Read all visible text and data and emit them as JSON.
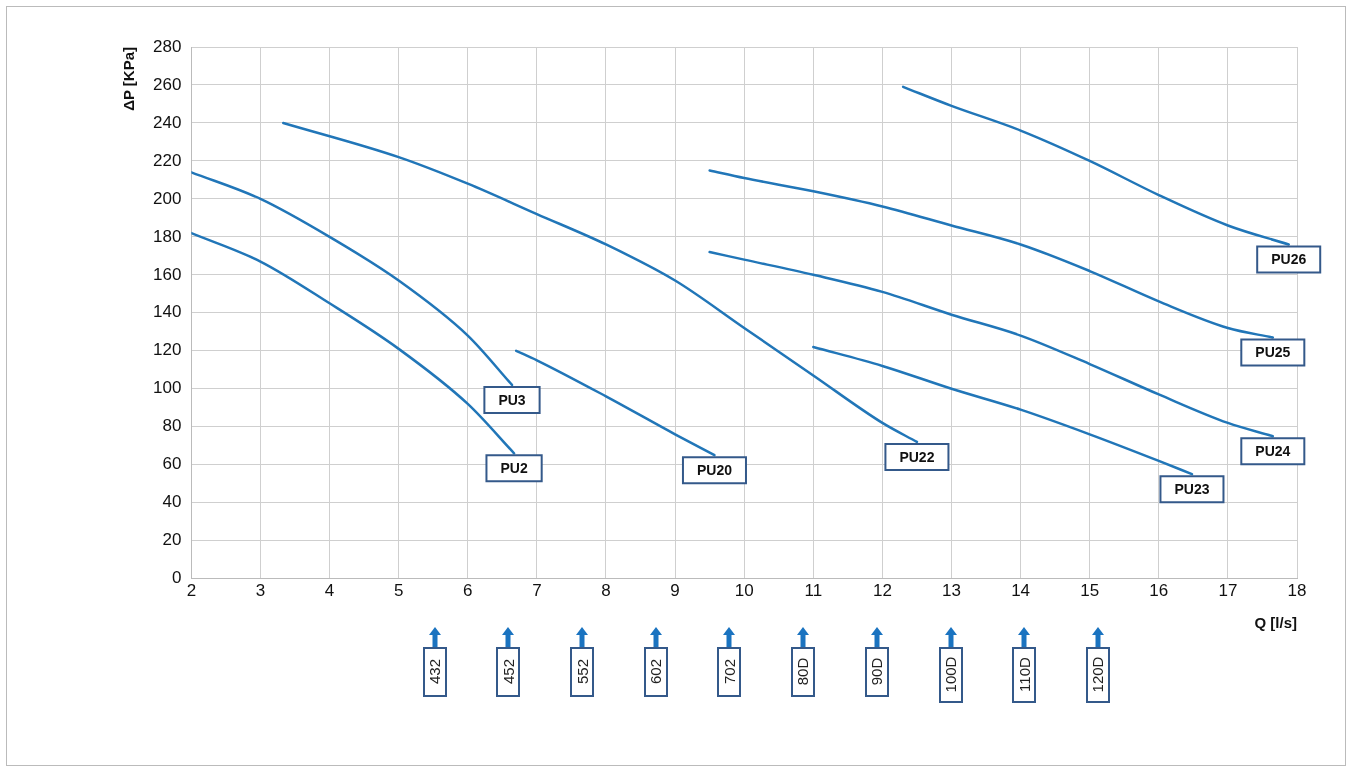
{
  "chart_data": {
    "type": "line",
    "xlabel": "Q [l/s]",
    "ylabel": "ΔP [KPa]",
    "xlim": [
      2,
      18
    ],
    "xticks": [
      2,
      3,
      4,
      5,
      6,
      7,
      8,
      9,
      10,
      11,
      12,
      13,
      14,
      15,
      16,
      17,
      18
    ],
    "ylim": [
      0,
      280
    ],
    "yticks": [
      0,
      20,
      40,
      60,
      80,
      100,
      120,
      140,
      160,
      180,
      200,
      220,
      240,
      260,
      280
    ],
    "grid": true,
    "legend": false,
    "marker": "none",
    "line_style": "solid",
    "series": [
      {
        "name": "PU2",
        "color": "#2176b8",
        "x": [
          2,
          3,
          4,
          5,
          6,
          6.67
        ],
        "values": [
          182,
          167,
          145,
          121,
          92,
          66
        ]
      },
      {
        "name": "PU3",
        "color": "#2176b8",
        "x": [
          2,
          3,
          4,
          5,
          6,
          6.64
        ],
        "values": [
          214,
          200,
          180,
          157,
          128,
          102
        ]
      },
      {
        "name": "PU20",
        "color": "#2176b8",
        "x": [
          6.7,
          7,
          8,
          9,
          9.57
        ],
        "values": [
          120,
          115,
          96,
          76,
          65
        ]
      },
      {
        "name": "PU22",
        "color": "#2176b8",
        "x": [
          3.33,
          5,
          6,
          7,
          8,
          9,
          10,
          11,
          12,
          12.5
        ],
        "values": [
          240,
          222,
          208,
          192,
          176,
          157,
          132,
          107,
          82,
          72
        ]
      },
      {
        "name": "PU23",
        "color": "#2176b8",
        "x": [
          11,
          12,
          13,
          14,
          15,
          16,
          16.48
        ],
        "values": [
          122,
          112,
          100,
          89,
          76,
          62,
          55
        ]
      },
      {
        "name": "PU24",
        "color": "#2176b8",
        "x": [
          9.5,
          10,
          11,
          12,
          13,
          14,
          15,
          16,
          17,
          17.65
        ],
        "values": [
          172,
          168,
          160,
          151,
          139,
          128,
          113,
          97,
          82,
          75
        ]
      },
      {
        "name": "PU25",
        "color": "#2176b8",
        "x": [
          9.5,
          10,
          11,
          12,
          13,
          14,
          15,
          16,
          17,
          17.65
        ],
        "values": [
          215,
          211,
          204,
          196,
          186,
          176,
          162,
          146,
          132,
          127
        ]
      },
      {
        "name": "PU26",
        "color": "#2176b8",
        "x": [
          12.3,
          13,
          14,
          15,
          16,
          17,
          17.88
        ],
        "values": [
          259,
          249,
          236,
          220,
          202,
          186,
          176
        ]
      }
    ],
    "annotations": [
      "432",
      "452",
      "552",
      "602",
      "702",
      "80D",
      "90D",
      "100D",
      "110D",
      "120D"
    ]
  }
}
